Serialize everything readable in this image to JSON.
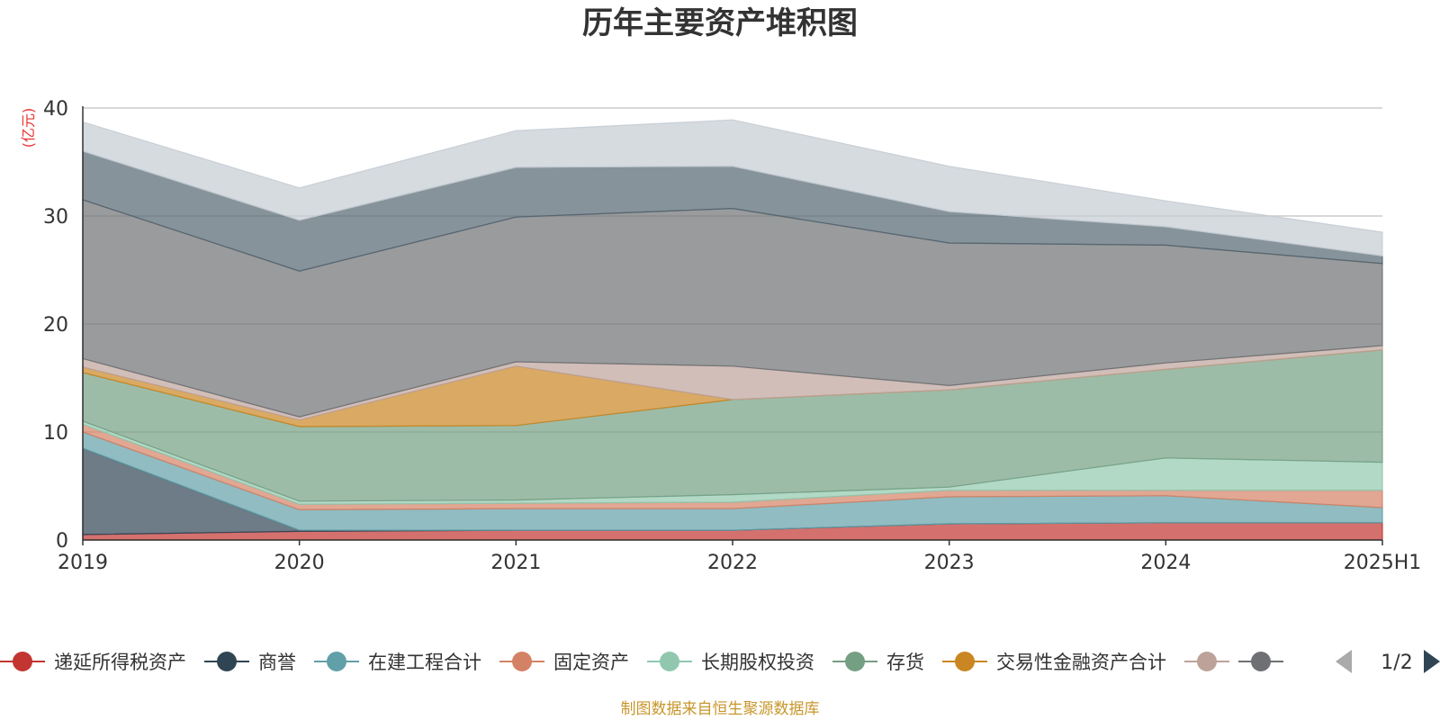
{
  "chart_data": {
    "type": "area",
    "stacked": true,
    "title": "历年主要资产堆积图",
    "unit_label": "(亿元)",
    "categories": [
      "2019",
      "2020",
      "2021",
      "2022",
      "2023",
      "2024",
      "2025H1"
    ],
    "ylim": [
      0,
      40
    ],
    "yticks": [
      0,
      10,
      20,
      30,
      40
    ],
    "grid": true,
    "series": [
      {
        "name": "递延所得税资产",
        "color": "#c23531",
        "values": [
          0.5,
          0.8,
          0.9,
          0.9,
          1.5,
          1.6,
          1.6
        ]
      },
      {
        "name": "商誉",
        "color": "#2f4554",
        "values": [
          8.0,
          0.1,
          0.0,
          0.0,
          0.0,
          0.0,
          0.0
        ]
      },
      {
        "name": "在建工程合计",
        "color": "#61a0a8",
        "values": [
          1.5,
          1.9,
          2.0,
          2.0,
          2.5,
          2.5,
          1.4
        ]
      },
      {
        "name": "固定资产",
        "color": "#d48265",
        "values": [
          0.7,
          0.5,
          0.5,
          0.6,
          0.6,
          0.5,
          1.6
        ]
      },
      {
        "name": "长期股权投资",
        "color": "#91c7ae",
        "values": [
          0.3,
          0.3,
          0.3,
          0.7,
          0.3,
          3.0,
          2.6
        ]
      },
      {
        "name": "存货",
        "color": "#749f83",
        "values": [
          4.5,
          6.9,
          6.9,
          8.8,
          9.0,
          8.2,
          10.4
        ]
      },
      {
        "name": "交易性金融资产合计",
        "color": "#ca8622",
        "values": [
          0.5,
          0.6,
          5.5,
          0.0,
          0.0,
          0.0,
          0.0
        ]
      },
      {
        "name": "",
        "color": "#bda29a",
        "values": [
          0.8,
          0.3,
          0.4,
          3.1,
          0.4,
          0.6,
          0.4
        ]
      },
      {
        "name": "",
        "color": "#6e7074",
        "values": [
          14.7,
          13.5,
          13.4,
          14.6,
          13.2,
          10.9,
          7.6
        ]
      },
      {
        "name": "",
        "color": "#546570",
        "values": [
          4.5,
          4.7,
          4.6,
          3.9,
          2.9,
          1.7,
          0.7
        ]
      },
      {
        "name": "",
        "color": "#c4ccd3",
        "values": [
          2.7,
          3.0,
          3.4,
          4.3,
          4.2,
          2.4,
          2.2
        ]
      }
    ],
    "legend": {
      "position": "bottom",
      "page": "1/2",
      "visible_count": 8
    }
  },
  "source_note": "制图数据来自恒生聚源数据库"
}
